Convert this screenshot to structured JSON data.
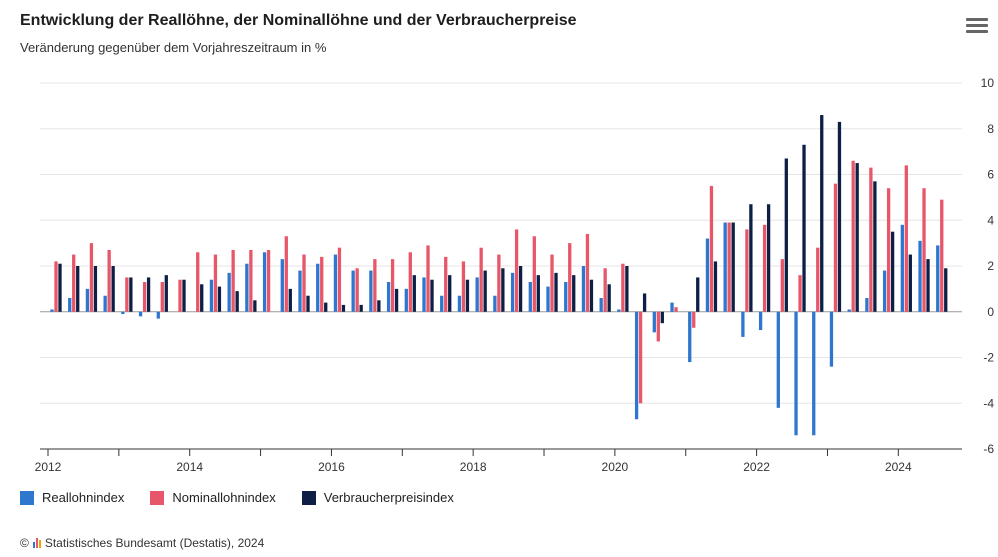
{
  "header": {
    "title": "Entwicklung der Reallöhne, der Nominallöhne und der Verbraucherpreise",
    "subtitle": "Veränderung gegenüber dem Vorjahreszeitraum in %",
    "menu_icon": "hamburger-menu-icon"
  },
  "credits": {
    "copyright_symbol": "©",
    "text": "Statistisches Bundesamt (Destatis), 2024",
    "logo_icon": "destatis-logo-icon"
  },
  "colors": {
    "real": "#2f76cf",
    "nominal": "#e8566a",
    "cpi": "#0d1f45",
    "grid": "#e6e6e6",
    "axis": "#333333",
    "zero": "#9a9a9a"
  },
  "chart_data": {
    "type": "bar",
    "x": [
      "2012 Q1",
      "2012 Q2",
      "2012 Q3",
      "2012 Q4",
      "2013 Q1",
      "2013 Q2",
      "2013 Q3",
      "2013 Q4",
      "2014 Q1",
      "2014 Q2",
      "2014 Q3",
      "2014 Q4",
      "2015 Q1",
      "2015 Q2",
      "2015 Q3",
      "2015 Q4",
      "2016 Q1",
      "2016 Q2",
      "2016 Q3",
      "2016 Q4",
      "2017 Q1",
      "2017 Q2",
      "2017 Q3",
      "2017 Q4",
      "2018 Q1",
      "2018 Q2",
      "2018 Q3",
      "2018 Q4",
      "2019 Q1",
      "2019 Q2",
      "2019 Q3",
      "2019 Q4",
      "2020 Q1",
      "2020 Q2",
      "2020 Q3",
      "2020 Q4",
      "2021 Q1",
      "2021 Q2",
      "2021 Q3",
      "2021 Q4",
      "2022 Q1",
      "2022 Q2",
      "2022 Q3",
      "2022 Q4",
      "2023 Q1",
      "2023 Q2",
      "2023 Q3",
      "2023 Q4",
      "2024 Q1",
      "2024 Q2",
      "2024 Q3"
    ],
    "x_ticks": [
      "2012",
      "2014",
      "2016",
      "2018",
      "2020",
      "2022",
      "2024"
    ],
    "series": [
      {
        "name": "Reallohnindex",
        "key": "real",
        "values": [
          0.1,
          0.6,
          1.0,
          0.7,
          -0.1,
          -0.2,
          -0.3,
          0.0,
          0.0,
          1.4,
          1.7,
          2.1,
          2.6,
          2.3,
          1.8,
          2.1,
          2.5,
          1.8,
          1.8,
          1.3,
          1.0,
          1.5,
          0.7,
          0.7,
          1.5,
          0.7,
          1.7,
          1.3,
          1.1,
          1.3,
          2.0,
          0.6,
          0.1,
          -4.7,
          -0.9,
          0.4,
          -2.2,
          3.2,
          3.9,
          -1.1,
          -0.8,
          -4.2,
          -5.4,
          -5.4,
          -2.4,
          0.1,
          0.6,
          1.8,
          3.8,
          3.1,
          2.9
        ]
      },
      {
        "name": "Nominallohnindex",
        "key": "nominal",
        "values": [
          2.2,
          2.5,
          3.0,
          2.7,
          1.5,
          1.3,
          1.3,
          1.4,
          2.6,
          2.5,
          2.7,
          2.7,
          2.7,
          3.3,
          2.5,
          2.4,
          2.8,
          1.9,
          2.3,
          2.3,
          2.6,
          2.9,
          2.4,
          2.2,
          2.8,
          2.5,
          3.6,
          3.3,
          2.5,
          3.0,
          3.4,
          1.9,
          2.1,
          -4.0,
          -1.3,
          0.2,
          -0.7,
          5.5,
          3.9,
          3.6,
          3.8,
          2.3,
          1.6,
          2.8,
          5.6,
          6.6,
          6.3,
          5.4,
          6.4,
          5.4,
          4.9
        ]
      },
      {
        "name": "Verbraucherpreisindex",
        "key": "cpi",
        "values": [
          2.1,
          2.0,
          2.0,
          2.0,
          1.5,
          1.5,
          1.6,
          1.4,
          1.2,
          1.1,
          0.9,
          0.5,
          0.0,
          1.0,
          0.7,
          0.4,
          0.3,
          0.3,
          0.5,
          1.0,
          1.6,
          1.4,
          1.6,
          1.4,
          1.8,
          1.9,
          2.0,
          1.6,
          1.7,
          1.6,
          1.4,
          1.2,
          2.0,
          0.8,
          -0.5,
          0.0,
          1.5,
          2.2,
          3.9,
          4.7,
          4.7,
          6.7,
          7.3,
          8.6,
          8.3,
          6.5,
          5.7,
          3.5,
          2.5,
          2.3,
          1.9
        ]
      }
    ],
    "y_ticks": [
      10,
      8,
      6,
      4,
      2,
      0,
      -2,
      -4,
      -6
    ],
    "ylim": [
      -6,
      10
    ],
    "axis_position": "right",
    "grid": true,
    "legend_position": "bottom-left"
  }
}
